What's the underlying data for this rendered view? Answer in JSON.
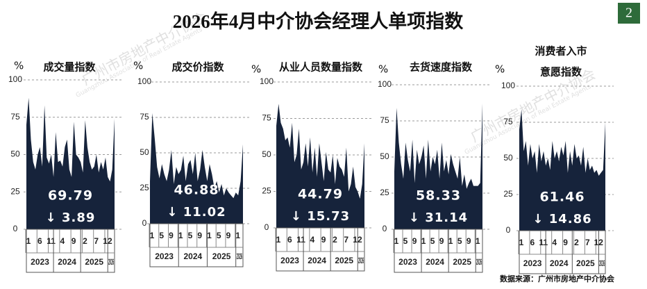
{
  "header": {
    "title": "2026年4月中介协会经理人单项指数",
    "page_number": "2",
    "source": "数据来源：广州市房地产中介协会"
  },
  "watermark": {
    "name": "广州市房地产中介协会",
    "name_en": "Guangzhou Association of Real Estate Agents"
  },
  "chart_data": [
    {
      "type": "area",
      "title": [
        "成交量指数"
      ],
      "unit": "%",
      "color": "#16233b",
      "value_label": "69.79",
      "change_label": "↓ 3.89",
      "categories": [
        "1",
        null,
        null,
        null,
        null,
        "6",
        null,
        null,
        null,
        null,
        "11",
        null,
        null,
        null,
        null,
        "4",
        null,
        null,
        null,
        null,
        "9",
        null,
        null,
        null,
        null,
        "2",
        null,
        null,
        null,
        null,
        "7",
        null,
        null,
        null,
        null,
        "12",
        null,
        null,
        null,
        null
      ],
      "years": [
        "2023",
        "2024",
        "2025",
        "2026"
      ],
      "values": [
        70,
        88,
        60,
        45,
        40,
        50,
        55,
        42,
        83,
        48,
        44,
        50,
        35,
        65,
        45,
        46,
        42,
        55,
        60,
        40,
        35,
        72,
        50,
        48,
        45,
        38,
        73,
        55,
        45,
        40,
        42,
        50,
        38,
        45,
        40,
        48,
        35,
        32,
        40,
        74
      ],
      "ylim": [
        0,
        100
      ],
      "yticks": [
        0,
        25,
        50,
        75,
        100
      ],
      "grid": true
    },
    {
      "type": "area",
      "title": [
        "成交价指数"
      ],
      "unit": "%",
      "color": "#16233b",
      "value_label": "46.88",
      "change_label": "↓ 11.02",
      "categories": [
        "1",
        null,
        null,
        null,
        "5",
        null,
        null,
        null,
        "9",
        null,
        null,
        null,
        "1",
        null,
        null,
        null,
        "5",
        null,
        null,
        null,
        "9",
        null,
        null,
        null,
        "1",
        null,
        null,
        null,
        "5",
        null,
        null,
        null,
        "9",
        null,
        null,
        null,
        "1",
        null,
        null,
        null
      ],
      "years": [
        "2023",
        "2024",
        "2025",
        "2026"
      ],
      "values": [
        30,
        78,
        60,
        40,
        32,
        42,
        35,
        30,
        38,
        52,
        28,
        40,
        35,
        38,
        48,
        30,
        42,
        45,
        35,
        50,
        30,
        38,
        52,
        40,
        30,
        42,
        35,
        25,
        30,
        22,
        28,
        20,
        25,
        22,
        20,
        18,
        22,
        20,
        30,
        56
      ],
      "ylim": [
        0,
        100
      ],
      "yticks": [
        0,
        25,
        50,
        75,
        100
      ],
      "grid": true
    },
    {
      "type": "area",
      "title": [
        "从业人员数量指数"
      ],
      "unit": "%",
      "color": "#16233b",
      "value_label": "44.79",
      "change_label": "↓ 15.73",
      "categories": [
        "1",
        null,
        null,
        null,
        null,
        "6",
        null,
        null,
        null,
        null,
        "11",
        null,
        null,
        null,
        null,
        "4",
        null,
        null,
        null,
        null,
        "9",
        null,
        null,
        null,
        null,
        "2",
        null,
        null,
        null,
        null,
        "7",
        null,
        null,
        null,
        null,
        "12",
        null,
        null,
        null,
        null
      ],
      "years": [
        "2023",
        "2024",
        "2025",
        "2026"
      ],
      "values": [
        70,
        85,
        72,
        68,
        60,
        62,
        55,
        72,
        45,
        50,
        68,
        40,
        45,
        58,
        42,
        62,
        38,
        55,
        35,
        58,
        45,
        32,
        52,
        40,
        38,
        50,
        30,
        48,
        42,
        40,
        35,
        55,
        25,
        30,
        42,
        28,
        25,
        20,
        30,
        58
      ],
      "ylim": [
        0,
        100
      ],
      "yticks": [
        0,
        25,
        50,
        75,
        100
      ],
      "grid": true
    },
    {
      "type": "area",
      "title": [
        "去货速度指数"
      ],
      "unit": "%",
      "color": "#16233b",
      "value_label": "58.33",
      "change_label": "↓ 31.14",
      "categories": [
        "1",
        null,
        null,
        null,
        "5",
        null,
        null,
        null,
        "9",
        null,
        null,
        null,
        "1",
        null,
        null,
        null,
        "5",
        null,
        null,
        null,
        "9",
        null,
        null,
        null,
        "1",
        null,
        null,
        null,
        "5",
        null,
        null,
        null,
        "9",
        null,
        null,
        null,
        "1",
        null,
        null,
        null
      ],
      "years": [
        "2023",
        "2024",
        "2025",
        "2026"
      ],
      "values": [
        40,
        84,
        60,
        45,
        35,
        60,
        48,
        40,
        62,
        32,
        55,
        45,
        50,
        58,
        35,
        62,
        40,
        50,
        45,
        55,
        35,
        60,
        40,
        48,
        38,
        52,
        45,
        40,
        35,
        50,
        30,
        38,
        28,
        32,
        35,
        30,
        30,
        30,
        32,
        87
      ],
      "ylim": [
        0,
        100
      ],
      "yticks": [
        0,
        25,
        50,
        75,
        100
      ],
      "grid": true
    },
    {
      "type": "area",
      "title": [
        "消费者入市",
        "意愿指数"
      ],
      "unit": "%",
      "color": "#16233b",
      "value_label": "61.46",
      "change_label": "↓ 14.86",
      "categories": [
        "1",
        null,
        null,
        null,
        null,
        "6",
        null,
        null,
        null,
        null,
        "11",
        null,
        null,
        null,
        null,
        "4",
        null,
        null,
        null,
        null,
        "9",
        null,
        null,
        null,
        null,
        "2",
        null,
        null,
        null,
        null,
        "7",
        null,
        null,
        null,
        null,
        "12",
        null,
        null,
        null,
        null
      ],
      "years": [
        "2023",
        "2024",
        "2025",
        "2026"
      ],
      "values": [
        70,
        84,
        55,
        62,
        45,
        60,
        50,
        55,
        40,
        60,
        48,
        55,
        45,
        50,
        42,
        62,
        50,
        55,
        48,
        58,
        52,
        62,
        40,
        55,
        45,
        60,
        50,
        52,
        45,
        58,
        40,
        50,
        42,
        45,
        40,
        42,
        38,
        40,
        42,
        75
      ],
      "ylim": [
        0,
        100
      ],
      "yticks": [
        0,
        25,
        50,
        75,
        100
      ],
      "grid": true
    }
  ]
}
